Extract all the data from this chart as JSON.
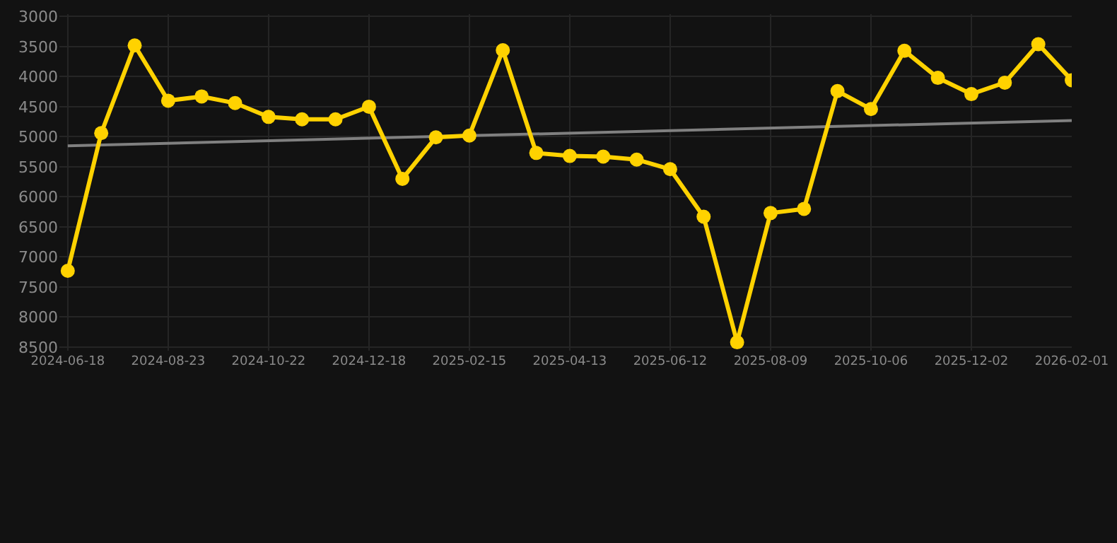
{
  "chart_data": {
    "type": "line",
    "categories": [
      "2024-06-18",
      null,
      null,
      "2024-08-23",
      null,
      null,
      "2024-10-22",
      null,
      null,
      "2024-12-18",
      null,
      null,
      "2025-02-15",
      null,
      null,
      "2025-04-13",
      null,
      null,
      "2025-06-12",
      null,
      null,
      "2025-08-09",
      null,
      null,
      "2025-10-06",
      null,
      null,
      "2025-12-02",
      null,
      null,
      "2026-02-01"
    ],
    "series": [
      {
        "color": "#ffd200",
        "marker": "circle",
        "values": [
          7230,
          4940,
          3480,
          4400,
          4330,
          4440,
          4670,
          4710,
          4710,
          4500,
          5700,
          5010,
          4980,
          3560,
          5270,
          5320,
          5330,
          5380,
          5540,
          6330,
          8420,
          6270,
          6200,
          4240,
          4540,
          3570,
          4020,
          4290,
          4100,
          3460,
          4060
        ]
      },
      {
        "color": "#808080",
        "marker": "none",
        "values": [
          5150,
          null,
          null,
          null,
          null,
          null,
          null,
          null,
          null,
          null,
          null,
          null,
          null,
          null,
          null,
          null,
          null,
          null,
          null,
          null,
          null,
          null,
          null,
          null,
          null,
          null,
          null,
          null,
          null,
          null,
          4730
        ]
      }
    ],
    "ylim": [
      8560,
      2960
    ],
    "yticks": [
      3000,
      3500,
      4000,
      4500,
      5000,
      5500,
      6000,
      6500,
      7000,
      7500,
      8000,
      8500
    ],
    "grid": true,
    "line_style": "solid"
  }
}
